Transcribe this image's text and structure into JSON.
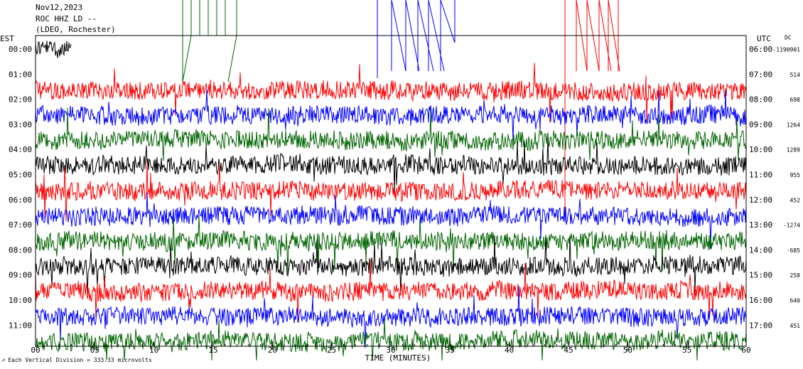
{
  "chart_data": {
    "type": "helicorder",
    "title_lines": [
      "Nov12,2023",
      "ROC HHZ LD --",
      "(LDEO, Rochester)"
    ],
    "left_axis_label": "EST",
    "right_axis_label": "UTC",
    "dc_label": "DC",
    "x_label": "TIME (MINUTES)",
    "footer": "Each Vertical Division =  333.33 microvolts",
    "xlim": [
      0,
      60
    ],
    "xticks": [
      {
        "value": 0,
        "label": "00"
      },
      {
        "value": 5,
        "label": "05"
      },
      10,
      15,
      20,
      25,
      30,
      35,
      40,
      45,
      50,
      55,
      60
    ],
    "rows": [
      {
        "est": "00:00",
        "utc": "06:00",
        "dc": "-1190901",
        "color": "#000000"
      },
      {
        "est": "01:00",
        "utc": "07:00",
        "dc": "514",
        "color": "#ff0000"
      },
      {
        "est": "02:00",
        "utc": "08:00",
        "dc": "698",
        "color": "#0000ff"
      },
      {
        "est": "03:00",
        "utc": "09:00",
        "dc": "1264",
        "color": "#006400"
      },
      {
        "est": "04:00",
        "utc": "10:00",
        "dc": "1289",
        "color": "#000000"
      },
      {
        "est": "05:00",
        "utc": "11:00",
        "dc": "955",
        "color": "#ff0000"
      },
      {
        "est": "06:00",
        "utc": "12:00",
        "dc": "452",
        "color": "#0000ff"
      },
      {
        "est": "07:00",
        "utc": "13:00",
        "dc": "-1274",
        "color": "#006400"
      },
      {
        "est": "08:00",
        "utc": "14:00",
        "dc": "-685",
        "color": "#000000"
      },
      {
        "est": "09:00",
        "utc": "15:00",
        "dc": "258",
        "color": "#ff0000"
      },
      {
        "est": "10:00",
        "utc": "16:00",
        "dc": "640",
        "color": "#0000ff"
      },
      {
        "est": "11:00",
        "utc": "17:00",
        "dc": "451",
        "color": "#006400"
      }
    ]
  }
}
